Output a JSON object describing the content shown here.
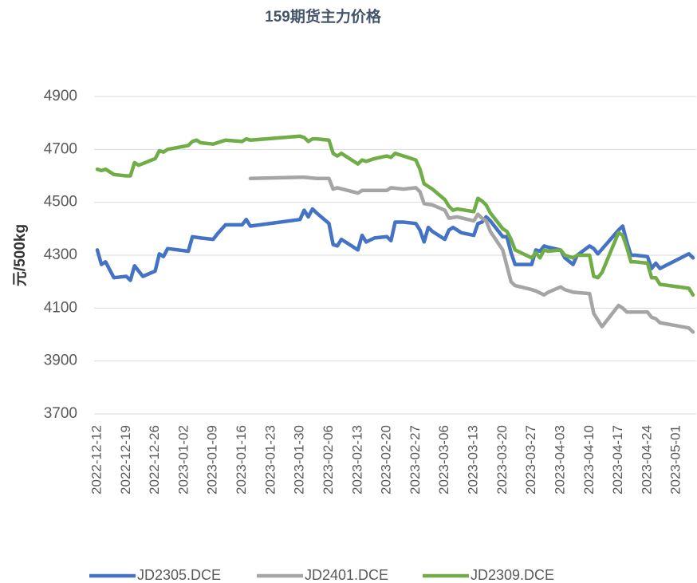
{
  "chart_data": {
    "type": "line",
    "title": "159期货主力价格",
    "y_label": "元/500kg",
    "xlim": [
      "2022-12-12",
      "2023-05-05"
    ],
    "xticks": [
      "2022-12-12",
      "2022-12-19",
      "2022-12-26",
      "2023-01-02",
      "2023-01-09",
      "2023-01-16",
      "2023-01-23",
      "2023-01-30",
      "2023-02-06",
      "2023-02-13",
      "2023-02-20",
      "2023-02-27",
      "2023-03-06",
      "2023-03-13",
      "2023-03-20",
      "2023-03-27",
      "2023-04-03",
      "2023-04-10",
      "2023-04-17",
      "2023-04-24",
      "2023-05-01"
    ],
    "ylim": [
      3700,
      4900
    ],
    "yticks": [
      3700,
      3900,
      4100,
      4300,
      4500,
      4700,
      4900
    ],
    "grid": true,
    "series": [
      {
        "name": "JD2305.DCE",
        "color": "#4472c4",
        "x": [
          "2022-12-12",
          "2022-12-13",
          "2022-12-14",
          "2022-12-16",
          "2022-12-19",
          "2022-12-20",
          "2022-12-21",
          "2022-12-23",
          "2022-12-26",
          "2022-12-27",
          "2022-12-28",
          "2022-12-29",
          "2023-01-03",
          "2023-01-04",
          "2023-01-06",
          "2023-01-09",
          "2023-01-10",
          "2023-01-12",
          "2023-01-16",
          "2023-01-17",
          "2023-01-18",
          "2023-01-30",
          "2023-01-31",
          "2023-02-01",
          "2023-02-02",
          "2023-02-03",
          "2023-02-06",
          "2023-02-07",
          "2023-02-08",
          "2023-02-09",
          "2023-02-13",
          "2023-02-14",
          "2023-02-15",
          "2023-02-17",
          "2023-02-20",
          "2023-02-21",
          "2023-02-22",
          "2023-02-24",
          "2023-02-27",
          "2023-02-28",
          "2023-03-01",
          "2023-03-02",
          "2023-03-03",
          "2023-03-06",
          "2023-03-07",
          "2023-03-08",
          "2023-03-10",
          "2023-03-13",
          "2023-03-14",
          "2023-03-15",
          "2023-03-16",
          "2023-03-17",
          "2023-03-20",
          "2023-03-21",
          "2023-03-22",
          "2023-03-23",
          "2023-03-27",
          "2023-03-28",
          "2023-03-29",
          "2023-03-30",
          "2023-03-31",
          "2023-04-03",
          "2023-04-04",
          "2023-04-06",
          "2023-04-07",
          "2023-04-10",
          "2023-04-11",
          "2023-04-12",
          "2023-04-17",
          "2023-04-18",
          "2023-04-19",
          "2023-04-20",
          "2023-04-21",
          "2023-04-24",
          "2023-04-25",
          "2023-04-26",
          "2023-04-27",
          "2023-05-04",
          "2023-05-05"
        ],
        "values": [
          4320,
          4265,
          4275,
          4215,
          4220,
          4205,
          4260,
          4220,
          4240,
          4305,
          4295,
          4325,
          4315,
          4370,
          4365,
          4360,
          4380,
          4415,
          4415,
          4435,
          4410,
          4435,
          4470,
          4445,
          4475,
          4460,
          4420,
          4340,
          4335,
          4360,
          4320,
          4375,
          4350,
          4365,
          4370,
          4355,
          4425,
          4425,
          4420,
          4395,
          4350,
          4405,
          4390,
          4360,
          4395,
          4405,
          4385,
          4375,
          4420,
          4425,
          4445,
          4430,
          4370,
          4370,
          4310,
          4265,
          4265,
          4320,
          4315,
          4335,
          4330,
          4320,
          4290,
          4265,
          4300,
          4335,
          4325,
          4305,
          4395,
          4410,
          4350,
          4300,
          4300,
          4295,
          4250,
          4270,
          4250,
          4305,
          4290
        ]
      },
      {
        "name": "JD2401.DCE",
        "color": "#a5a5a5",
        "x": [
          "2023-01-18",
          "2023-01-30",
          "2023-01-31",
          "2023-02-03",
          "2023-02-06",
          "2023-02-07",
          "2023-02-08",
          "2023-02-13",
          "2023-02-14",
          "2023-02-20",
          "2023-02-21",
          "2023-02-24",
          "2023-02-27",
          "2023-02-28",
          "2023-03-01",
          "2023-03-03",
          "2023-03-06",
          "2023-03-07",
          "2023-03-09",
          "2023-03-13",
          "2023-03-14",
          "2023-03-15",
          "2023-03-16",
          "2023-03-17",
          "2023-03-20",
          "2023-03-21",
          "2023-03-22",
          "2023-03-23",
          "2023-03-27",
          "2023-03-28",
          "2023-03-30",
          "2023-03-31",
          "2023-04-03",
          "2023-04-04",
          "2023-04-06",
          "2023-04-10",
          "2023-04-11",
          "2023-04-12",
          "2023-04-13",
          "2023-04-14",
          "2023-04-17",
          "2023-04-18",
          "2023-04-19",
          "2023-04-24",
          "2023-04-25",
          "2023-04-26",
          "2023-04-27",
          "2023-05-04",
          "2023-05-05"
        ],
        "values": [
          4590,
          4595,
          4595,
          4590,
          4590,
          4550,
          4555,
          4535,
          4545,
          4545,
          4555,
          4550,
          4555,
          4540,
          4495,
          4490,
          4470,
          4440,
          4445,
          4430,
          4455,
          4440,
          4430,
          4390,
          4320,
          4260,
          4200,
          4185,
          4170,
          4165,
          4150,
          4160,
          4180,
          4170,
          4160,
          4155,
          4080,
          4055,
          4030,
          4050,
          4110,
          4100,
          4085,
          4085,
          4065,
          4060,
          4045,
          4025,
          4010
        ]
      },
      {
        "name": "JD2309.DCE",
        "color": "#70ad47",
        "x": [
          "2022-12-12",
          "2022-12-13",
          "2022-12-14",
          "2022-12-16",
          "2022-12-19",
          "2022-12-20",
          "2022-12-21",
          "2022-12-22",
          "2022-12-26",
          "2022-12-27",
          "2022-12-28",
          "2022-12-29",
          "2023-01-03",
          "2023-01-04",
          "2023-01-05",
          "2023-01-06",
          "2023-01-09",
          "2023-01-10",
          "2023-01-12",
          "2023-01-16",
          "2023-01-17",
          "2023-01-18",
          "2023-01-30",
          "2023-01-31",
          "2023-02-01",
          "2023-02-02",
          "2023-02-03",
          "2023-02-06",
          "2023-02-07",
          "2023-02-08",
          "2023-02-09",
          "2023-02-13",
          "2023-02-14",
          "2023-02-15",
          "2023-02-17",
          "2023-02-20",
          "2023-02-21",
          "2023-02-22",
          "2023-02-24",
          "2023-02-27",
          "2023-02-28",
          "2023-03-01",
          "2023-03-02",
          "2023-03-03",
          "2023-03-06",
          "2023-03-07",
          "2023-03-08",
          "2023-03-09",
          "2023-03-13",
          "2023-03-14",
          "2023-03-15",
          "2023-03-16",
          "2023-03-17",
          "2023-03-20",
          "2023-03-21",
          "2023-03-22",
          "2023-03-23",
          "2023-03-27",
          "2023-03-28",
          "2023-03-29",
          "2023-03-30",
          "2023-03-31",
          "2023-04-03",
          "2023-04-04",
          "2023-04-06",
          "2023-04-07",
          "2023-04-10",
          "2023-04-11",
          "2023-04-12",
          "2023-04-13",
          "2023-04-17",
          "2023-04-18",
          "2023-04-19",
          "2023-04-20",
          "2023-04-21",
          "2023-04-24",
          "2023-04-25",
          "2023-04-26",
          "2023-04-27",
          "2023-05-04",
          "2023-05-05"
        ],
        "values": [
          4625,
          4620,
          4625,
          4605,
          4600,
          4600,
          4650,
          4640,
          4665,
          4695,
          4690,
          4700,
          4715,
          4730,
          4735,
          4725,
          4720,
          4725,
          4735,
          4730,
          4740,
          4735,
          4750,
          4745,
          4730,
          4740,
          4740,
          4735,
          4685,
          4675,
          4685,
          4645,
          4660,
          4655,
          4665,
          4675,
          4670,
          4685,
          4675,
          4660,
          4625,
          4570,
          4560,
          4550,
          4510,
          4485,
          4470,
          4475,
          4465,
          4515,
          4505,
          4490,
          4460,
          4400,
          4390,
          4360,
          4320,
          4290,
          4310,
          4290,
          4320,
          4315,
          4320,
          4300,
          4290,
          4300,
          4300,
          4220,
          4215,
          4235,
          4385,
          4375,
          4330,
          4275,
          4275,
          4270,
          4215,
          4215,
          4190,
          4175,
          4150
        ]
      }
    ]
  }
}
